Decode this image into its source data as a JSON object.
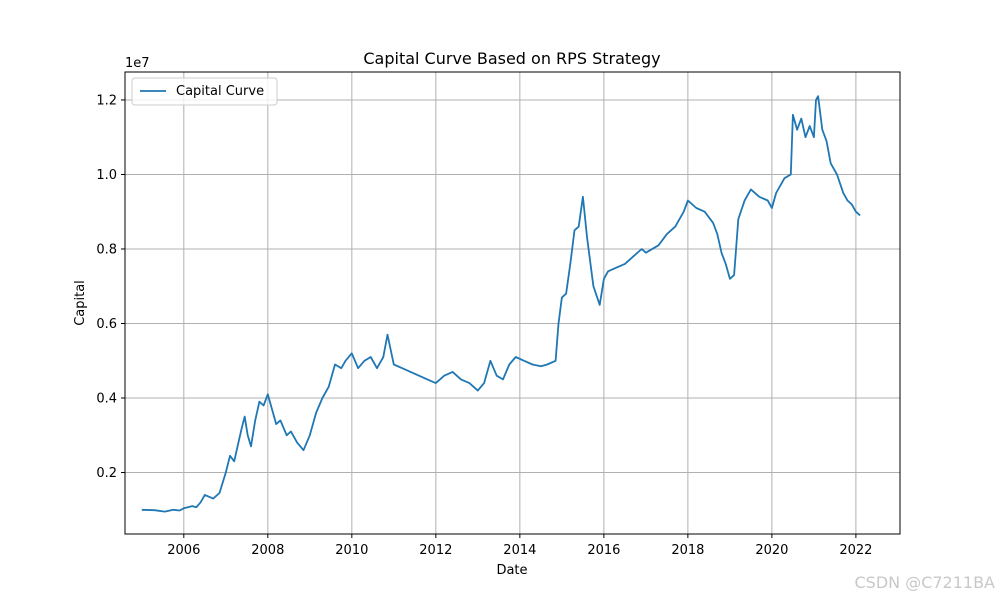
{
  "chart_data": {
    "type": "line",
    "title": "Capital Curve Based on RPS Strategy",
    "xlabel": "Date",
    "ylabel": "Capital",
    "y_offset_text": "1e7",
    "xlim": [
      2004.6,
      2023.05
    ],
    "ylim": [
      0.035,
      1.275
    ],
    "x_ticks": [
      2006,
      2008,
      2010,
      2012,
      2014,
      2016,
      2018,
      2020,
      2022
    ],
    "y_ticks": [
      0.2,
      0.4,
      0.6,
      0.8,
      1.0,
      1.2
    ],
    "y_tick_labels": [
      "0.2",
      "0.4",
      "0.6",
      "0.8",
      "1.0",
      "1.2"
    ],
    "grid": true,
    "legend_position": "upper-left",
    "colors": {
      "series": "#1f77b4",
      "grid": "#b0b0b0",
      "watermark": "#c8c8c8"
    },
    "series": [
      {
        "name": "Capital Curve",
        "x": [
          2005.0,
          2005.3,
          2005.55,
          2005.75,
          2005.9,
          2006.0,
          2006.2,
          2006.3,
          2006.4,
          2006.5,
          2006.7,
          2006.85,
          2007.0,
          2007.1,
          2007.2,
          2007.3,
          2007.38,
          2007.45,
          2007.52,
          2007.6,
          2007.7,
          2007.8,
          2007.9,
          2008.0,
          2008.1,
          2008.2,
          2008.3,
          2008.45,
          2008.55,
          2008.7,
          2008.85,
          2009.0,
          2009.15,
          2009.3,
          2009.45,
          2009.6,
          2009.75,
          2009.85,
          2010.0,
          2010.15,
          2010.3,
          2010.45,
          2010.6,
          2010.75,
          2010.85,
          2011.0,
          2011.2,
          2011.4,
          2011.6,
          2011.8,
          2012.0,
          2012.2,
          2012.4,
          2012.6,
          2012.8,
          2013.0,
          2013.15,
          2013.3,
          2013.45,
          2013.6,
          2013.75,
          2013.9,
          2014.1,
          2014.3,
          2014.5,
          2014.65,
          2014.85,
          2014.92,
          2015.0,
          2015.1,
          2015.2,
          2015.3,
          2015.4,
          2015.5,
          2015.6,
          2015.75,
          2015.9,
          2016.0,
          2016.1,
          2016.3,
          2016.5,
          2016.7,
          2016.9,
          2017.0,
          2017.3,
          2017.5,
          2017.7,
          2017.9,
          2018.0,
          2018.2,
          2018.4,
          2018.6,
          2018.7,
          2018.8,
          2018.9,
          2019.0,
          2019.1,
          2019.2,
          2019.35,
          2019.5,
          2019.7,
          2019.9,
          2020.0,
          2020.1,
          2020.3,
          2020.45,
          2020.5,
          2020.6,
          2020.7,
          2020.8,
          2020.9,
          2021.0,
          2021.05,
          2021.1,
          2021.2,
          2021.3,
          2021.4,
          2021.55,
          2021.7,
          2021.8,
          2021.9,
          2022.0,
          2022.1
        ],
        "y": [
          0.1,
          0.099,
          0.095,
          0.1,
          0.098,
          0.104,
          0.11,
          0.107,
          0.12,
          0.14,
          0.13,
          0.145,
          0.2,
          0.245,
          0.23,
          0.28,
          0.32,
          0.35,
          0.3,
          0.27,
          0.34,
          0.39,
          0.38,
          0.41,
          0.37,
          0.33,
          0.34,
          0.3,
          0.31,
          0.28,
          0.26,
          0.3,
          0.36,
          0.4,
          0.43,
          0.49,
          0.48,
          0.5,
          0.52,
          0.48,
          0.5,
          0.51,
          0.48,
          0.51,
          0.57,
          0.49,
          0.48,
          0.47,
          0.46,
          0.45,
          0.44,
          0.46,
          0.47,
          0.45,
          0.44,
          0.42,
          0.44,
          0.5,
          0.46,
          0.45,
          0.49,
          0.51,
          0.5,
          0.49,
          0.485,
          0.49,
          0.5,
          0.6,
          0.67,
          0.68,
          0.76,
          0.85,
          0.86,
          0.94,
          0.83,
          0.7,
          0.65,
          0.72,
          0.74,
          0.75,
          0.76,
          0.78,
          0.8,
          0.79,
          0.81,
          0.84,
          0.86,
          0.9,
          0.93,
          0.91,
          0.9,
          0.87,
          0.84,
          0.79,
          0.76,
          0.72,
          0.73,
          0.88,
          0.93,
          0.96,
          0.94,
          0.93,
          0.91,
          0.95,
          0.99,
          1.0,
          1.16,
          1.12,
          1.15,
          1.1,
          1.13,
          1.1,
          1.2,
          1.21,
          1.12,
          1.09,
          1.03,
          1.0,
          0.95,
          0.93,
          0.92,
          0.9,
          0.89
        ]
      }
    ]
  },
  "watermark": "CSDN @C7211BA"
}
